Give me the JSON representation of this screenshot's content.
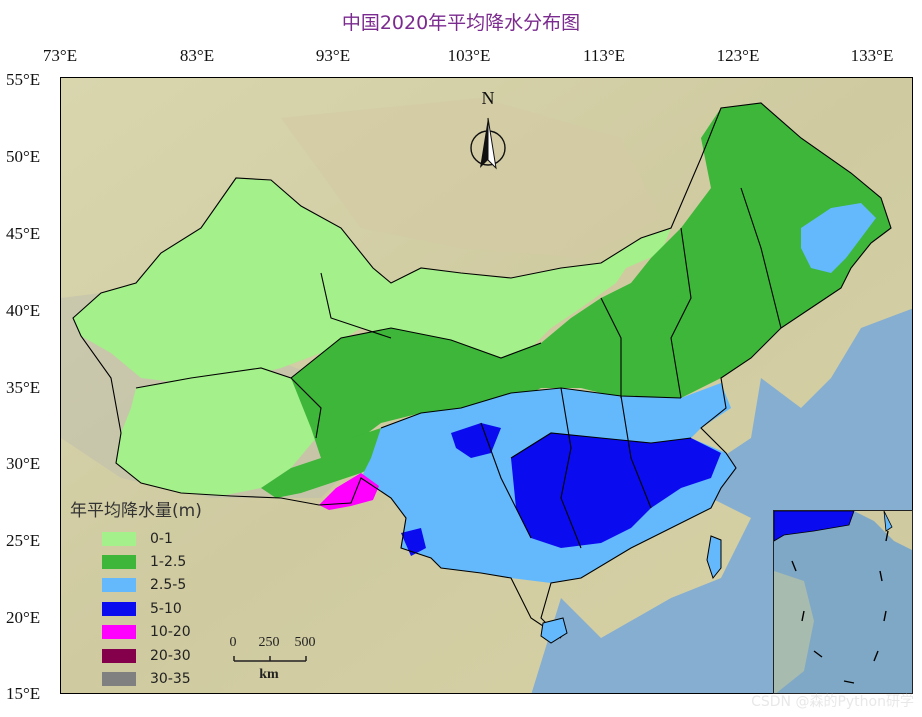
{
  "title": "中国2020年平均降水分布图",
  "lon_labels": [
    "73°E",
    "83°E",
    "93°E",
    "103°E",
    "113°E",
    "123°E",
    "133°E"
  ],
  "lat_labels": [
    "55°E",
    "50°E",
    "45°E",
    "40°E",
    "35°E",
    "30°E",
    "25°E",
    "20°E",
    "15°E"
  ],
  "north_arrow": {
    "letter": "N",
    "icon": "north-arrow-icon"
  },
  "legend": {
    "title": "年平均降水量(m)",
    "items": [
      {
        "label": "0-1",
        "color": "#a4f08a"
      },
      {
        "label": "1-2.5",
        "color": "#3db63a"
      },
      {
        "label": "2.5-5",
        "color": "#64b9fc"
      },
      {
        "label": "5-10",
        "color": "#0b0bf0"
      },
      {
        "label": "10-20",
        "color": "#ff00ff"
      },
      {
        "label": "20-30",
        "color": "#85004a"
      },
      {
        "label": "30-35",
        "color": "#808080"
      }
    ]
  },
  "scalebar": {
    "ticks": [
      "0",
      "250",
      "500"
    ],
    "unit": "km"
  },
  "watermark": "CSDN @森的Python研学",
  "colors": {
    "ocean": "#86aed0",
    "land": "#d8d3a6",
    "border": "#000000"
  }
}
